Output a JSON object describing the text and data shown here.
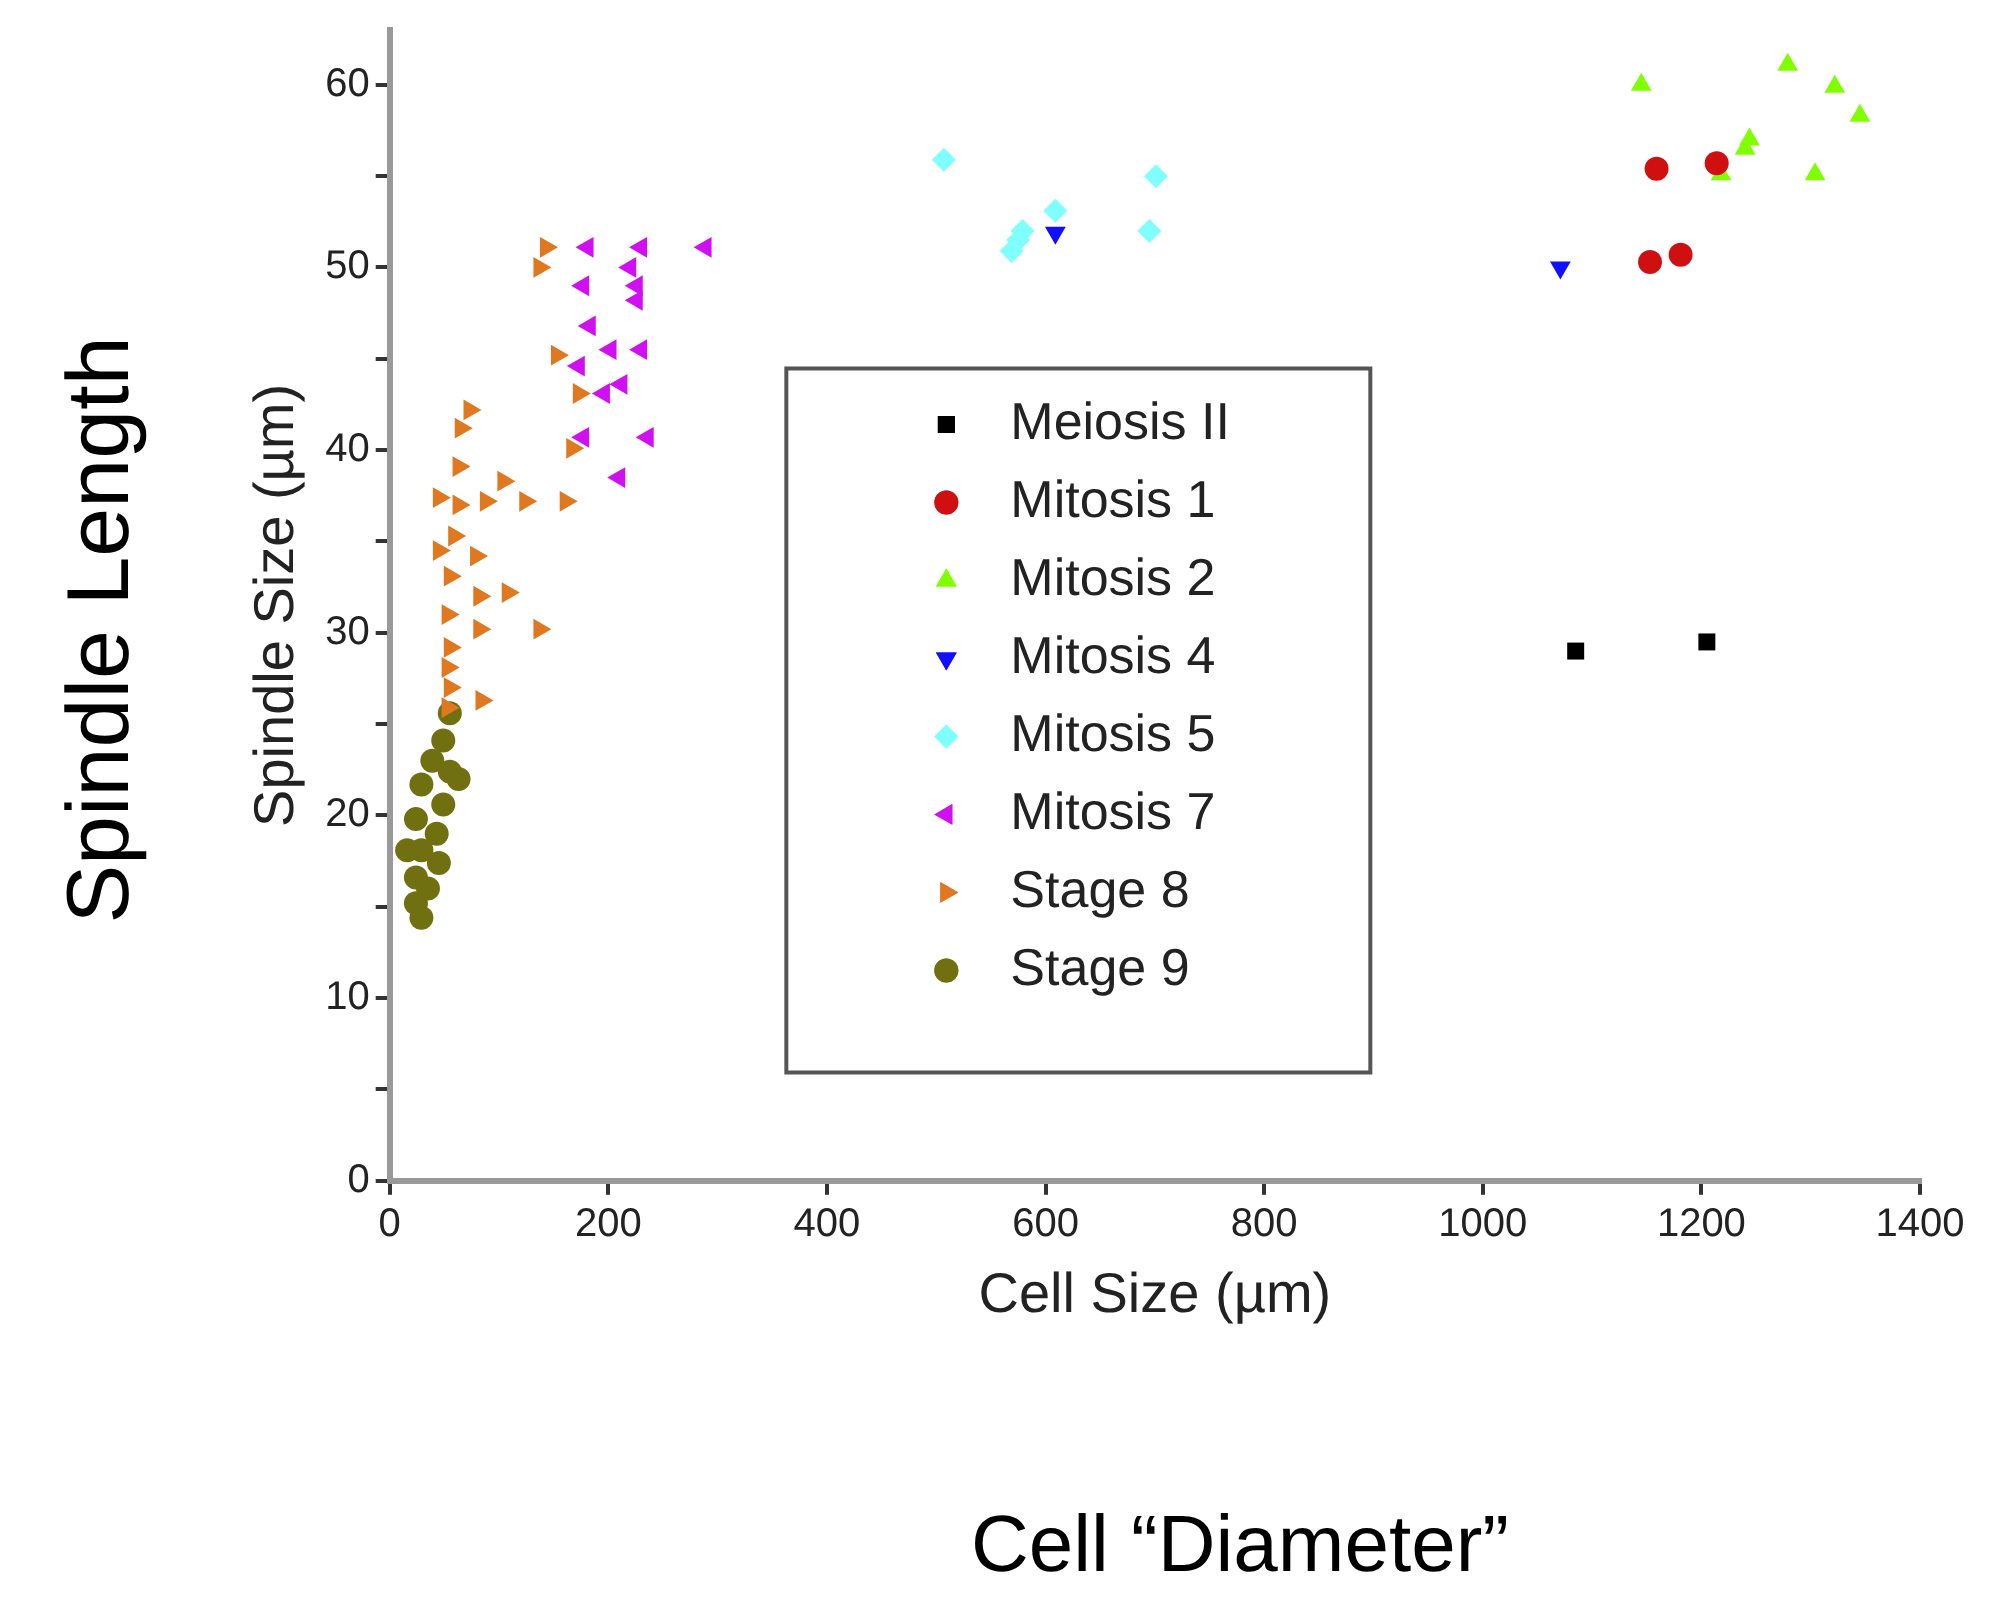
{
  "chart_data": {
    "type": "scatter",
    "xlabel": "Cell Size (µm)",
    "ylabel": "Spindle Size (µm)",
    "annotations": [
      "Spindle Length",
      "Cell “Diameter”"
    ],
    "xlim": [
      0,
      1400
    ],
    "xticks": [
      0,
      200,
      400,
      600,
      800,
      1000,
      1200,
      1400
    ],
    "ylim": [
      0,
      63
    ],
    "yticks": [
      0,
      {
        "value": 5,
        "label": null
      },
      10,
      {
        "value": 15,
        "label": null
      },
      20,
      {
        "value": 25,
        "label": null
      },
      30,
      {
        "value": 35,
        "label": null
      },
      40,
      {
        "value": 45,
        "label": null
      },
      50,
      {
        "value": 55,
        "label": null
      },
      60
    ],
    "grid": false,
    "legend": "center",
    "series": [
      {
        "name": "Meiosis II",
        "color": "#000000",
        "marker": "square",
        "x": [
          1085,
          1205
        ],
        "values": [
          29,
          29.5
        ]
      },
      {
        "name": "Mitosis 1",
        "color": "#d01010",
        "marker": "circle",
        "x": [
          1159,
          1214,
          1153,
          1181
        ],
        "values": [
          55.4,
          55.7,
          50.3,
          50.7
        ]
      },
      {
        "name": "Mitosis 2",
        "color": "#80ff00",
        "marker": "triangle",
        "x": [
          1145,
          1279,
          1322,
          1345,
          1244,
          1240,
          1218,
          1304
        ],
        "values": [
          60.0,
          61.1,
          59.9,
          58.3,
          57.0,
          56.5,
          55.1,
          55.1
        ]
      },
      {
        "name": "Mitosis 4",
        "color": "#1010ff",
        "marker": "triangle-down",
        "x": [
          1071,
          609
        ],
        "values": [
          50.0,
          51.9
        ]
      },
      {
        "name": "Mitosis 5",
        "color": "#80ffff",
        "marker": "diamond",
        "x": [
          507,
          701,
          695,
          609,
          579,
          569,
          575
        ],
        "values": [
          55.9,
          55.0,
          52.0,
          53.1,
          52.0,
          50.9,
          51.5
        ]
      },
      {
        "name": "Mitosis 7",
        "color": "#d010f0",
        "marker": "triangle-left",
        "x": [
          181,
          230,
          289,
          220,
          177,
          226,
          226,
          183,
          202,
          230,
          173,
          212,
          196,
          177,
          236,
          210
        ],
        "values": [
          51.1,
          51.1,
          51.1,
          50.0,
          49.0,
          49.0,
          48.2,
          46.8,
          45.5,
          45.5,
          44.6,
          43.6,
          43.1,
          40.7,
          40.7,
          38.5
        ]
      },
      {
        "name": "Stage 8",
        "color": "#e07820",
        "marker": "triangle-right",
        "x": [
          143,
          137,
          153,
          173,
          167,
          73,
          65,
          63,
          104,
          124,
          161,
          88,
          63,
          59,
          79,
          55,
          108,
          82,
          53,
          137,
          82,
          55,
          53,
          84,
          55,
          53,
          45,
          45
        ],
        "values": [
          51.1,
          50.0,
          45.2,
          43.1,
          40.1,
          42.2,
          41.2,
          39.1,
          38.3,
          37.2,
          37.2,
          37.2,
          37.0,
          35.3,
          34.2,
          33.1,
          32.2,
          32.0,
          31.0,
          30.2,
          30.2,
          29.2,
          28.1,
          26.3,
          27.0,
          25.9,
          37.4,
          34.5
        ]
      },
      {
        "name": "Stage 9",
        "color": "#707010",
        "marker": "circle",
        "x": [
          55,
          49,
          39,
          63,
          29,
          49,
          24,
          43,
          29,
          45,
          24,
          35,
          24,
          29,
          16,
          55
        ],
        "values": [
          25.6,
          24.1,
          23.0,
          22.0,
          21.7,
          20.6,
          19.8,
          19.0,
          18.1,
          17.4,
          16.6,
          16.0,
          15.2,
          14.4,
          18.1,
          22.4
        ]
      }
    ]
  }
}
